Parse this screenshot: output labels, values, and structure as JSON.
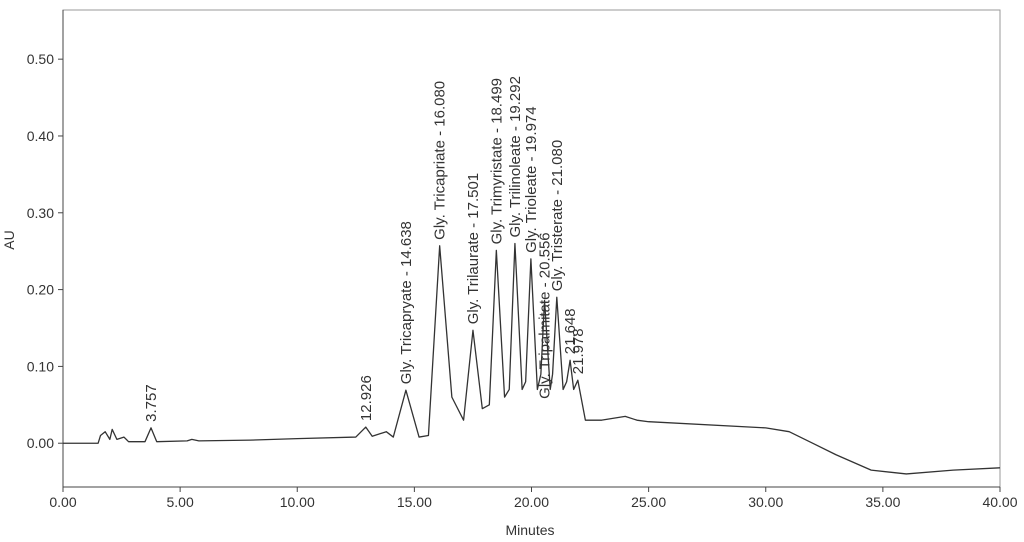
{
  "chart_data": {
    "type": "line",
    "xlabel": "Minutes",
    "ylabel": "AU",
    "x": [
      0,
      1.5,
      1.6,
      1.8,
      2.0,
      2.1,
      2.3,
      2.6,
      2.8,
      3.5,
      3.757,
      4.0,
      5.3,
      5.5,
      5.8,
      8,
      10,
      12.5,
      12.926,
      13.2,
      13.8,
      14.1,
      14.638,
      15.2,
      15.6,
      16.08,
      16.6,
      17.1,
      17.501,
      17.9,
      18.2,
      18.499,
      18.85,
      19.05,
      19.292,
      19.6,
      19.75,
      19.974,
      20.25,
      20.4,
      20.556,
      20.8,
      20.9,
      21.08,
      21.35,
      21.5,
      21.648,
      21.8,
      21.978,
      22.3,
      23,
      24,
      24.5,
      25,
      30,
      31,
      32,
      33,
      34.5,
      36,
      38,
      40
    ],
    "values": [
      0,
      0,
      0.01,
      0.015,
      0.005,
      0.018,
      0.005,
      0.008,
      0.002,
      0.002,
      0.02,
      0.002,
      0.003,
      0.005,
      0.003,
      0.004,
      0.006,
      0.008,
      0.021,
      0.009,
      0.015,
      0.008,
      0.069,
      0.008,
      0.01,
      0.257,
      0.06,
      0.03,
      0.147,
      0.045,
      0.05,
      0.251,
      0.06,
      0.07,
      0.26,
      0.07,
      0.08,
      0.24,
      0.07,
      0.09,
      0.186,
      0.07,
      0.09,
      0.19,
      0.07,
      0.08,
      0.108,
      0.07,
      0.082,
      0.03,
      0.03,
      0.035,
      0.03,
      0.028,
      0.02,
      0.015,
      0,
      -0.015,
      -0.035,
      -0.04,
      -0.035,
      -0.032
    ],
    "color": "#333333",
    "xlim": [
      0,
      40
    ],
    "ylim": [
      -0.057,
      0.564
    ],
    "xticks": [
      {
        "value": 0,
        "label": "0.00"
      },
      {
        "value": 5,
        "label": "5.00"
      },
      {
        "value": 10,
        "label": "10.00"
      },
      {
        "value": 15,
        "label": "15.00"
      },
      {
        "value": 20,
        "label": "20.00"
      },
      {
        "value": 25,
        "label": "25.00"
      },
      {
        "value": 30,
        "label": "30.00"
      },
      {
        "value": 35,
        "label": "35.00"
      },
      {
        "value": 40,
        "label": "40.00"
      }
    ],
    "yticks": [
      {
        "value": 0,
        "label": "0.00"
      },
      {
        "value": 0.1,
        "label": "0.10"
      },
      {
        "value": 0.2,
        "label": "0.20"
      },
      {
        "value": 0.3,
        "label": "0.30"
      },
      {
        "value": 0.4,
        "label": "0.40"
      },
      {
        "value": 0.5,
        "label": "0.50"
      }
    ],
    "annotations": [
      {
        "text": "3.757",
        "x": 3.757,
        "y": 0.02
      },
      {
        "text": "12.926",
        "x": 12.926,
        "y": 0.021
      },
      {
        "text": "Gly. Tricapryate - 14.638",
        "x": 14.638,
        "y": 0.069
      },
      {
        "text": "Gly. Tricapriate - 16.080",
        "x": 16.08,
        "y": 0.257
      },
      {
        "text": "Gly. Trilaurate - 17.501",
        "x": 17.501,
        "y": 0.147
      },
      {
        "text": "Gly. Trimyristate - 18.499",
        "x": 18.499,
        "y": 0.251
      },
      {
        "text": "Gly. Trilinoleate - 19.292",
        "x": 19.292,
        "y": 0.26
      },
      {
        "text": "Gly. Trioleate - 19.974",
        "x": 19.974,
        "y": 0.24
      },
      {
        "text": "Gly. Tripalmitate - 20.556",
        "x": 20.556,
        "y": 0.05
      },
      {
        "text": "Gly. Tristerate - 21.080",
        "x": 21.08,
        "y": 0.19
      },
      {
        "text": "21.648",
        "x": 21.648,
        "y": 0.108
      },
      {
        "text": "21.978",
        "x": 21.978,
        "y": 0.082
      }
    ]
  }
}
